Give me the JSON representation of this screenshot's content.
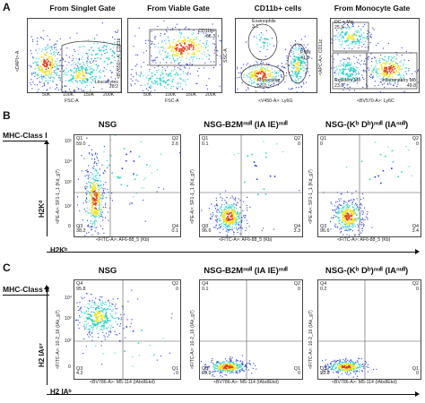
{
  "panel_a": {
    "letter": "A",
    "gates": [
      {
        "title": "From Singlet Gate",
        "y_label": "<DAPI>-A",
        "x_label": "FSC-A",
        "gate_name": "Leucocytes",
        "gate_value": "28.2"
      },
      {
        "title": "From Viable Gate",
        "y_label": "<BV650>-A: CD11b",
        "x_label": "FSC-A",
        "gate_name": "CD11b+",
        "gate_value": "66.3"
      },
      {
        "title": "CD11b+ cells",
        "y_label": "SSC-A",
        "x_label": "<V450-A>: Ly6G",
        "gate_name_1": "Eosinophils",
        "gate_value_1": "3.1",
        "gate_name_2": "PMN",
        "gate_value_2": "41.3",
        "gate_name_3": "Monocytes",
        "gate_value_3": "53.0"
      },
      {
        "title": "From Monocyte Gate",
        "y_label": "<APC-A>: CD11c",
        "x_label": "<BV570-A>: Ly6C",
        "dc_label": "DC + Mφ",
        "dc_value": "25.9",
        "res_label": "Resident Mo",
        "res_value": "23.8",
        "inf_label": "Inflammatory Mo",
        "inf_value": "49.8"
      }
    ]
  },
  "panel_b": {
    "letter": "B",
    "section": "MHC-Class I",
    "big_y": "H2Kᵈ",
    "big_x": "H2Kᵇ",
    "y_label": "<PE-A>: SF1-1_1 (Kd_g7)",
    "x_label": "<FITC-A>: AF6-88_5 (Kb)",
    "plots": [
      {
        "title": "NSG",
        "q1": "Q1\n59.0",
        "q2": "Q2\n2.6",
        "q3": "Q3\n38.2",
        "q4": "Q4\n0.1"
      },
      {
        "title": "NSG-B2Mⁿᵘˡˡ (IA IE)ⁿᵘˡˡ",
        "q1": "Q1\n0.1",
        "q2": "Q2\n0",
        "q3": "Q3\n96.6",
        "q4": "Q4\n3.3"
      },
      {
        "title": "NSG-(Kᵇ Dᵇ)ⁿᵘˡˡ (IAⁿᵘˡˡ)",
        "q1": "Q1\n0",
        "q2": "Q2\n0",
        "q3": "Q3\n96.6",
        "q4": "Q4\n3.4"
      }
    ]
  },
  "panel_c": {
    "letter": "C",
    "section": "MHC-Class II",
    "big_y": "H2 IAᵍ⁷",
    "big_x": "H2 IAᵇ",
    "y_label": "<FITC-A>: 10-2_16 (IAk_g7)",
    "x_label": "<BV786-A>: M5-114 (IAbdIEkd)",
    "plots": [
      {
        "title": "NSG",
        "q1": "Q4\n95.8",
        "q2": "Q2\n0",
        "q3": "Q3\n4.2",
        "q4": "Q1\n0"
      },
      {
        "title": "NSG-B2Mⁿᵘˡˡ (IA IE)ⁿᵘˡˡ",
        "q1": "Q4\n0.1",
        "q2": "Q2\n0",
        "q3": "Q3\n99.9",
        "q4": "Q1\n0"
      },
      {
        "title": "NSG-(Kᵇ Dᵇ)ⁿᵘˡˡ (IAⁿᵘˡˡ)",
        "q1": "Q4\n0.2",
        "q2": "Q2\n0",
        "q3": "Q3\n99.8",
        "q4": "Q1\n0"
      }
    ]
  },
  "ticks": {
    "t2": "10²",
    "t3": "10³",
    "t4": "10⁴",
    "t5": "10⁵",
    "t0": "0",
    "k50": "50K",
    "k100": "100K",
    "k150": "150K",
    "k200": "200K",
    "k250": "250K"
  },
  "colors": {
    "low": "#2b3fd9",
    "mid": "#2fd3c9",
    "high": "#f5e51b",
    "peak": "#e8401c"
  }
}
